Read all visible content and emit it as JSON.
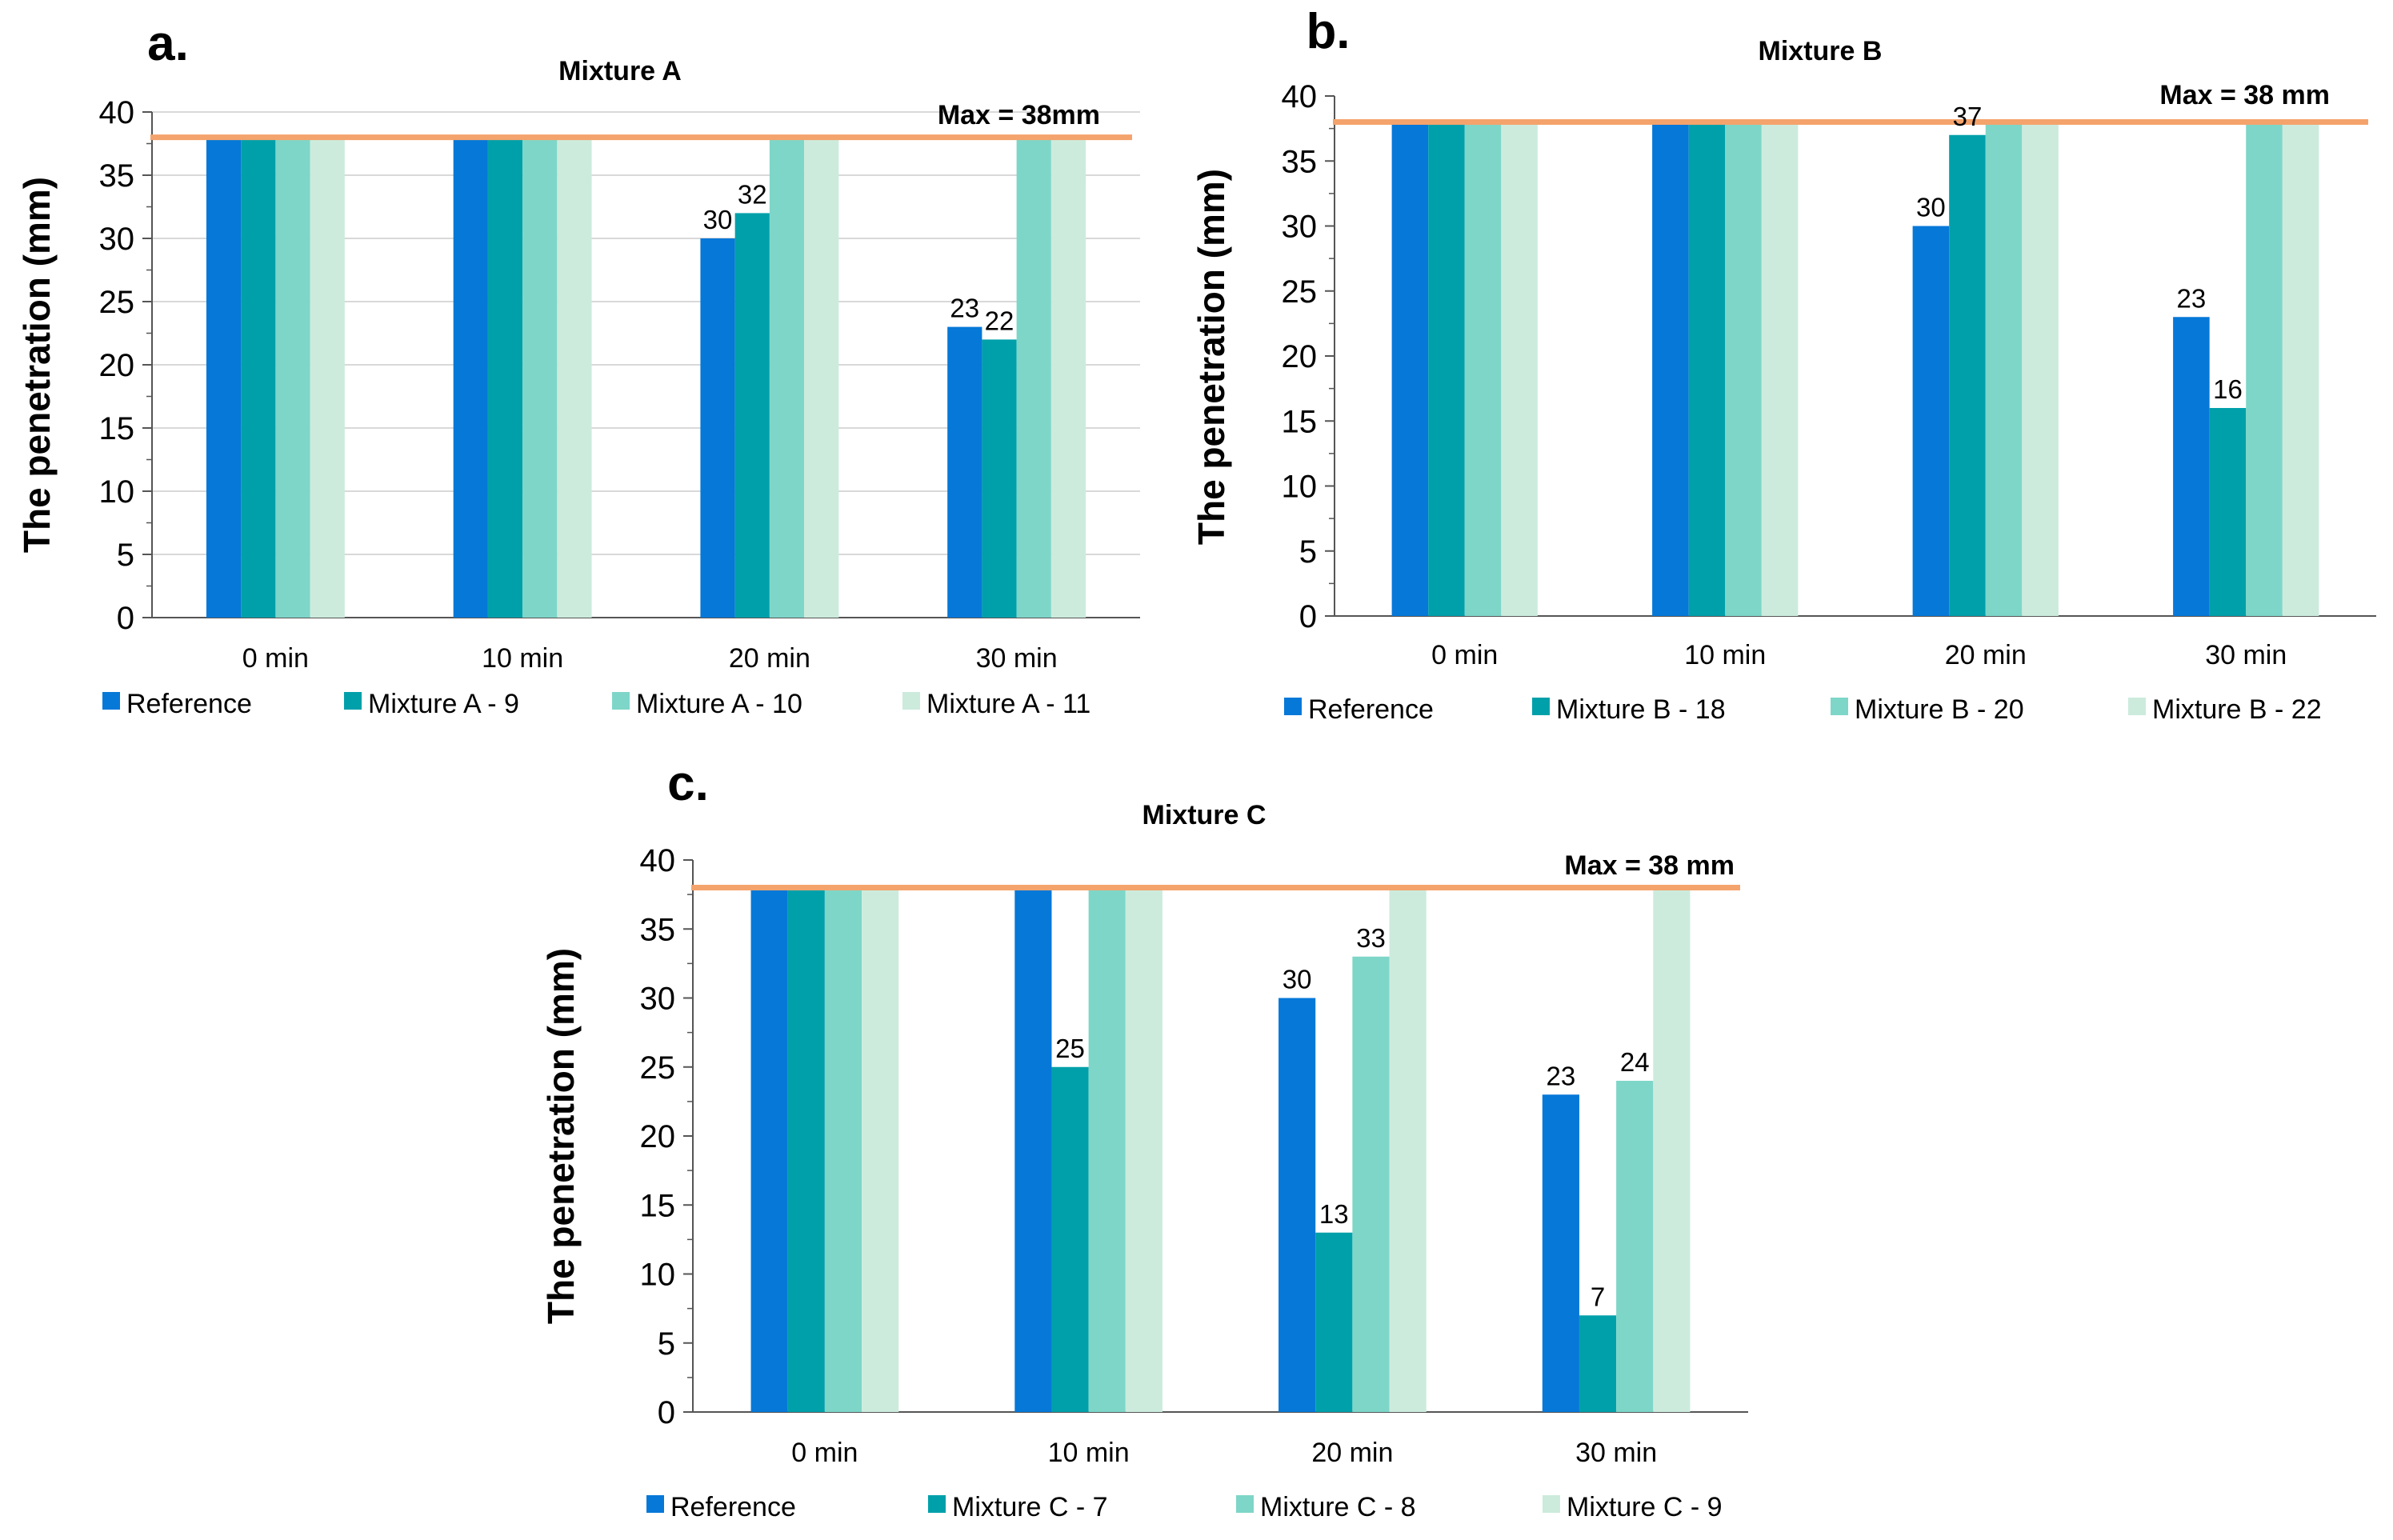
{
  "colors": {
    "series": [
      "#0678D8",
      "#00A0AA",
      "#7ED6C8",
      "#CCEBDD"
    ],
    "max_line": "#F4A36C",
    "grid": "#D9D9D9",
    "axis": "#555555"
  },
  "chart_data": [
    {
      "type": "bar",
      "panel_letter": "a.",
      "title": "Mixture A",
      "xlabel": "",
      "ylabel": "The penetration (mm)",
      "ylim": [
        0,
        40
      ],
      "yticks": [
        "0",
        "5",
        "10",
        "15",
        "20",
        "25",
        "30",
        "35",
        "40"
      ],
      "categories": [
        "0 min",
        "10 min",
        "20 min",
        "30 min"
      ],
      "series": [
        {
          "name": "Reference",
          "values": [
            38,
            38,
            30,
            23
          ]
        },
        {
          "name": "Mixture A - 9",
          "values": [
            38,
            38,
            32,
            22
          ]
        },
        {
          "name": "Mixture A - 10",
          "values": [
            38,
            38,
            38,
            38
          ]
        },
        {
          "name": "Mixture A - 11",
          "values": [
            38,
            38,
            38,
            38
          ]
        }
      ],
      "data_labels": [
        {
          "series": 0,
          "category": 2,
          "text": "30"
        },
        {
          "series": 1,
          "category": 2,
          "text": "32"
        },
        {
          "series": 0,
          "category": 3,
          "text": "23"
        },
        {
          "series": 1,
          "category": 3,
          "text": "22"
        }
      ],
      "max_line": {
        "value": 38,
        "label": "Max = 38mm"
      },
      "grid": true,
      "legend_position": "bottom"
    },
    {
      "type": "bar",
      "panel_letter": "b.",
      "title": "Mixture  B",
      "xlabel": "",
      "ylabel": "The penetration (mm)",
      "ylim": [
        0,
        40
      ],
      "yticks": [
        "0",
        "5",
        "10",
        "15",
        "20",
        "25",
        "30",
        "35",
        "40"
      ],
      "categories": [
        "0 min",
        "10 min",
        "20 min",
        "30 min"
      ],
      "series": [
        {
          "name": "Reference",
          "values": [
            38,
            38,
            30,
            23
          ]
        },
        {
          "name": "Mixture  B - 18",
          "values": [
            38,
            38,
            37,
            16
          ]
        },
        {
          "name": "Mixture  B - 20",
          "values": [
            38,
            38,
            38,
            38
          ]
        },
        {
          "name": "Mixture  B - 22",
          "values": [
            38,
            38,
            38,
            38
          ]
        }
      ],
      "data_labels": [
        {
          "series": 0,
          "category": 2,
          "text": "30"
        },
        {
          "series": 1,
          "category": 2,
          "text": "37"
        },
        {
          "series": 0,
          "category": 3,
          "text": "23"
        },
        {
          "series": 1,
          "category": 3,
          "text": "16"
        }
      ],
      "max_line": {
        "value": 38,
        "label": "Max = 38 mm"
      },
      "grid": false,
      "legend_position": "bottom"
    },
    {
      "type": "bar",
      "panel_letter": "c.",
      "title": "Mixture C",
      "xlabel": "",
      "ylabel": "The penetration (mm)",
      "ylim": [
        0,
        40
      ],
      "yticks": [
        "0",
        "5",
        "10",
        "15",
        "20",
        "25",
        "30",
        "35",
        "40"
      ],
      "categories": [
        "0 min",
        "10 min",
        "20 min",
        "30 min"
      ],
      "series": [
        {
          "name": "Reference",
          "values": [
            38,
            38,
            30,
            23
          ]
        },
        {
          "name": "Mixture C - 7",
          "values": [
            38,
            25,
            13,
            7
          ]
        },
        {
          "name": "Mixture C - 8",
          "values": [
            38,
            38,
            33,
            24
          ]
        },
        {
          "name": "Mixture C - 9",
          "values": [
            38,
            38,
            38,
            38
          ]
        }
      ],
      "data_labels": [
        {
          "series": 1,
          "category": 1,
          "text": "25"
        },
        {
          "series": 0,
          "category": 2,
          "text": "30"
        },
        {
          "series": 1,
          "category": 2,
          "text": "13"
        },
        {
          "series": 2,
          "category": 2,
          "text": "33"
        },
        {
          "series": 0,
          "category": 3,
          "text": "23"
        },
        {
          "series": 1,
          "category": 3,
          "text": "7"
        },
        {
          "series": 2,
          "category": 3,
          "text": "24"
        }
      ],
      "max_line": {
        "value": 38,
        "label": "Max = 38 mm"
      },
      "grid": false,
      "legend_position": "bottom"
    }
  ]
}
